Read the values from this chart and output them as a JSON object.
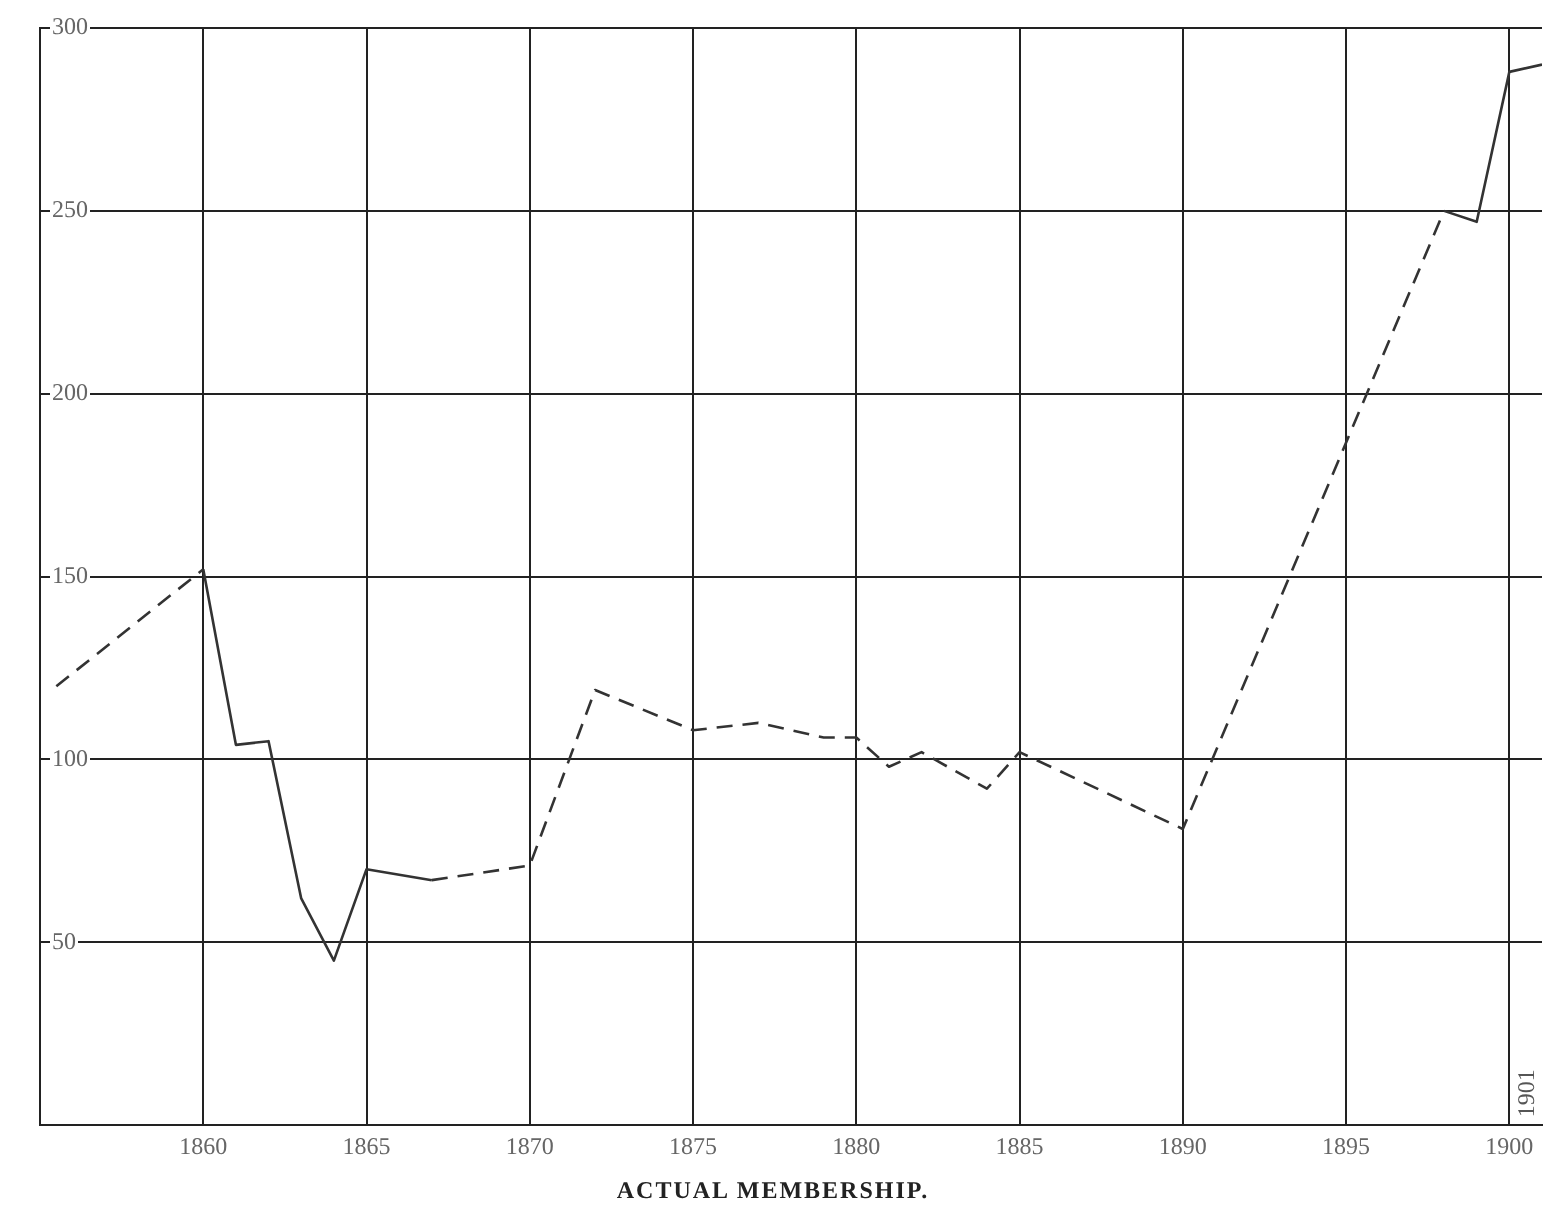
{
  "chart_data": {
    "type": "line",
    "title": "ACTUAL MEMBERSHIP.",
    "x": [
      1855.5,
      1860,
      1861,
      1862,
      1863,
      1864,
      1865,
      1867,
      1870,
      1872,
      1875,
      1877,
      1879,
      1880,
      1881,
      1882,
      1884,
      1885,
      1890,
      1898,
      1899,
      1900,
      1901
    ],
    "series": [
      {
        "color": "#333333",
        "line_style": "dashed",
        "values": [
          120,
          152,
          null,
          null,
          null,
          null,
          null,
          67,
          71,
          119,
          108,
          110,
          106,
          106,
          98,
          102,
          92,
          102,
          81,
          250,
          null,
          null,
          null
        ]
      },
      {
        "color": "#333333",
        "line_style": "solid",
        "values": [
          null,
          152,
          104,
          105,
          62,
          45,
          70,
          67,
          null,
          null,
          null,
          null,
          null,
          null,
          null,
          null,
          null,
          null,
          null,
          250,
          247,
          288,
          290
        ]
      }
    ],
    "xlim": [
      1855,
      1901
    ],
    "xticks": [
      1860,
      1865,
      1870,
      1875,
      1880,
      1885,
      1890,
      1895,
      1900
    ],
    "ylim": [
      0,
      300
    ],
    "yticks": [
      50,
      100,
      150,
      200,
      250,
      300
    ],
    "grid": true,
    "marker": "none",
    "annotations": [
      "1901"
    ]
  }
}
